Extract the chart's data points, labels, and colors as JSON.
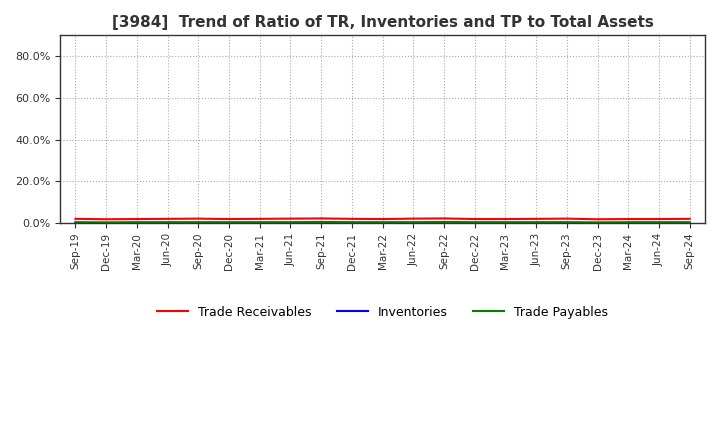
{
  "title": "[3984]  Trend of Ratio of TR, Inventories and TP to Total Assets",
  "x_labels": [
    "Sep-19",
    "Dec-19",
    "Mar-20",
    "Jun-20",
    "Sep-20",
    "Dec-20",
    "Mar-21",
    "Jun-21",
    "Sep-21",
    "Dec-21",
    "Mar-22",
    "Jun-22",
    "Sep-22",
    "Dec-22",
    "Mar-23",
    "Jun-23",
    "Sep-23",
    "Dec-23",
    "Mar-24",
    "Jun-24",
    "Sep-24"
  ],
  "trade_receivables": [
    0.02,
    0.018,
    0.019,
    0.02,
    0.021,
    0.019,
    0.02,
    0.021,
    0.022,
    0.02,
    0.019,
    0.021,
    0.022,
    0.019,
    0.019,
    0.02,
    0.021,
    0.018,
    0.019,
    0.019,
    0.02
  ],
  "inventories": [
    0.0003,
    0.0003,
    0.0003,
    0.0003,
    0.0003,
    0.0003,
    0.0003,
    0.0003,
    0.0003,
    0.0003,
    0.0003,
    0.0003,
    0.0003,
    0.0003,
    0.0003,
    0.0003,
    0.0003,
    0.0003,
    0.0003,
    0.0003,
    0.0003
  ],
  "trade_payables": [
    0.004,
    0.003,
    0.004,
    0.004,
    0.004,
    0.004,
    0.004,
    0.004,
    0.005,
    0.004,
    0.004,
    0.004,
    0.005,
    0.004,
    0.004,
    0.004,
    0.004,
    0.003,
    0.004,
    0.004,
    0.004
  ],
  "tr_color": "#FF0000",
  "inv_color": "#0000FF",
  "tp_color": "#008000",
  "background_color": "#FFFFFF",
  "grid_color": "#AAAAAA",
  "title_fontsize": 11,
  "legend_labels": [
    "Trade Receivables",
    "Inventories",
    "Trade Payables"
  ],
  "ylim_max": 0.9,
  "ytick_vals": [
    0.0,
    0.2,
    0.4,
    0.6,
    0.8
  ]
}
